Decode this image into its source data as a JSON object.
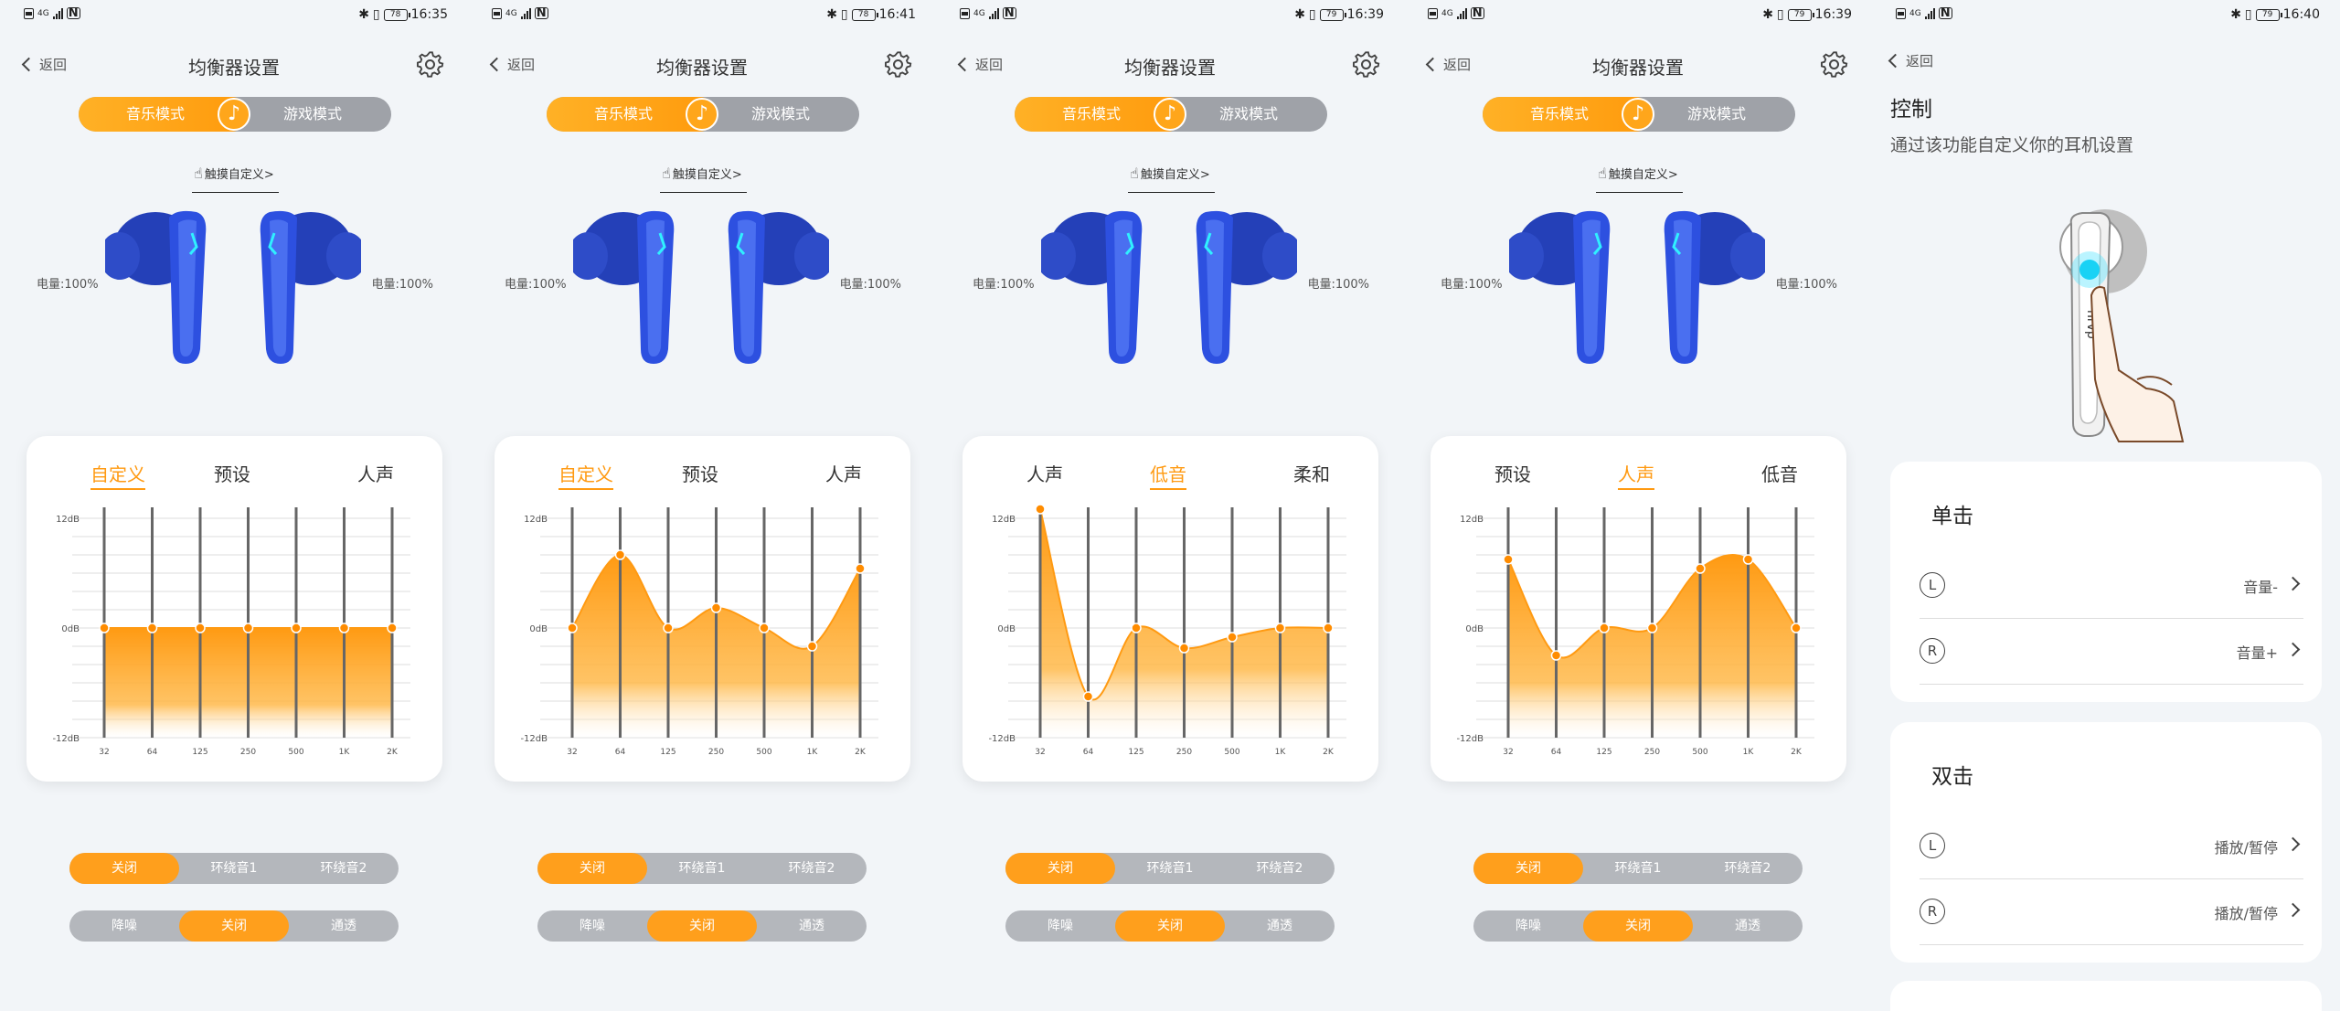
{
  "screens": [
    {
      "time": "16:35",
      "battery": "78",
      "back": "返回",
      "title": "均衡器设置",
      "mode_music": "音乐模式",
      "mode_game": "游戏模式",
      "touch": "触摸自定义>",
      "battery_left": "电量:100%",
      "battery_right": "电量:100%",
      "tabs": [
        "自定义",
        "预设",
        "人声"
      ],
      "active_tab": 0,
      "eq_gains_db": [
        0,
        0,
        0,
        0,
        0,
        0,
        0
      ],
      "seg1": [
        "关闭",
        "环绕音1",
        "环绕音2"
      ],
      "seg1_active": 0,
      "seg2": [
        "降噪",
        "关闭",
        "通透"
      ],
      "seg2_active": 1
    },
    {
      "time": "16:41",
      "battery": "78",
      "back": "返回",
      "title": "均衡器设置",
      "mode_music": "音乐模式",
      "mode_game": "游戏模式",
      "touch": "触摸自定义>",
      "battery_left": "电量:100%",
      "battery_right": "电量:100%",
      "tabs": [
        "自定义",
        "预设",
        "人声"
      ],
      "active_tab": 0,
      "eq_gains_db": [
        0,
        8,
        0,
        2.2,
        0,
        -2,
        6.5
      ],
      "seg1": [
        "关闭",
        "环绕音1",
        "环绕音2"
      ],
      "seg1_active": 0,
      "seg2": [
        "降噪",
        "关闭",
        "通透"
      ],
      "seg2_active": 1
    },
    {
      "time": "16:39",
      "battery": "79",
      "back": "返回",
      "title": "均衡器设置",
      "mode_music": "音乐模式",
      "mode_game": "游戏模式",
      "touch": "触摸自定义>",
      "battery_left": "电量:100%",
      "battery_right": "电量:100%",
      "tabs": [
        "人声",
        "低音",
        "柔和"
      ],
      "active_tab": 1,
      "eq_gains_db": [
        13,
        -7.5,
        0,
        -2.2,
        -1,
        0,
        0
      ],
      "seg1": [
        "关闭",
        "环绕音1",
        "环绕音2"
      ],
      "seg1_active": 0,
      "seg2": [
        "降噪",
        "关闭",
        "通透"
      ],
      "seg2_active": 1
    },
    {
      "time": "16:39",
      "battery": "79",
      "back": "返回",
      "title": "均衡器设置",
      "mode_music": "音乐模式",
      "mode_game": "游戏模式",
      "touch": "触摸自定义>",
      "battery_left": "电量:100%",
      "battery_right": "电量:100%",
      "tabs": [
        "预设",
        "人声",
        "低音"
      ],
      "active_tab": 1,
      "eq_gains_db": [
        7.5,
        -3,
        0,
        0,
        6.5,
        7.5,
        0
      ],
      "seg1": [
        "关闭",
        "环绕音1",
        "环绕音2"
      ],
      "seg1_active": 0,
      "seg2": [
        "降噪",
        "关闭",
        "通透"
      ],
      "seg2_active": 1
    }
  ],
  "eq_axis": {
    "y_labels": [
      "12dB",
      "0dB",
      "-12dB"
    ],
    "bands": [
      "32",
      "64",
      "125",
      "250",
      "500",
      "1K",
      "2K"
    ],
    "ylim": [
      -12,
      12
    ]
  },
  "control_screen": {
    "time": "16:40",
    "battery": "79",
    "back": "返回",
    "title": "控制",
    "subtitle": "通过该功能自定义你的耳机设置",
    "single_tap": {
      "title": "单击",
      "rows": [
        {
          "side": "L",
          "value": "音量-"
        },
        {
          "side": "R",
          "value": "音量+"
        }
      ]
    },
    "double_tap": {
      "title": "双击",
      "rows": [
        {
          "side": "L",
          "value": "播放/暂停"
        },
        {
          "side": "R",
          "value": "播放/暂停"
        }
      ]
    }
  },
  "colors": {
    "accent": "#ff9a12",
    "earbud_blue": "#2a4bd6",
    "toggle_grey": "#9fa2a8"
  }
}
